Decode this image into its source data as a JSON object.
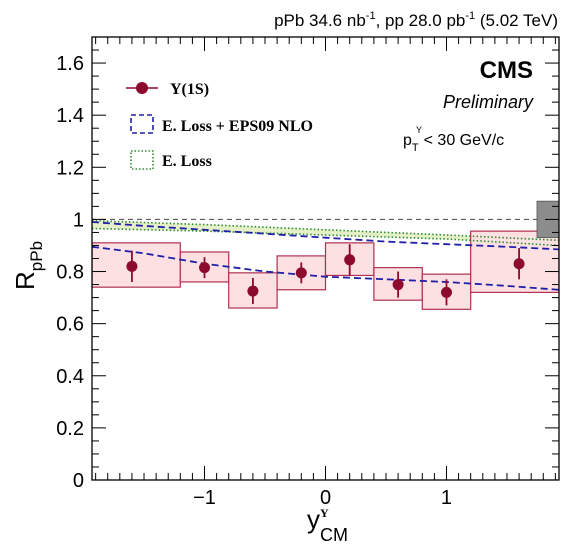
{
  "chart_data": {
    "type": "scatter",
    "header": {
      "collision_prefix": "pPb 34.6 nb",
      "collision_pp": ", pp 28.0 pb",
      "energy": " (5.02 TeV)",
      "sup": "-1"
    },
    "experiment": "CMS",
    "status": "Preliminary",
    "cut": {
      "p": "p",
      "sub": "T",
      "sup": "Y",
      "rest": "< 30 GeV/c"
    },
    "ylabel": {
      "main": "R",
      "sub": "pPb"
    },
    "xlabel": {
      "main": "y",
      "sub": "CM",
      "sup": "Y"
    },
    "xlim": [
      -1.93,
      1.93
    ],
    "ylim": [
      0,
      1.7
    ],
    "x_ticks": [
      {
        "value": -1,
        "label": "−1"
      },
      {
        "value": 0,
        "label": "0"
      },
      {
        "value": 1,
        "label": "1"
      }
    ],
    "y_ticks": [
      {
        "value": 0,
        "label": "0"
      },
      {
        "value": 0.2,
        "label": "0.2"
      },
      {
        "value": 0.4,
        "label": "0.4"
      },
      {
        "value": 0.6,
        "label": "0.6"
      },
      {
        "value": 0.8,
        "label": "0.8"
      },
      {
        "value": 1.0,
        "label": "1"
      },
      {
        "value": 1.2,
        "label": "1.2"
      },
      {
        "value": 1.4,
        "label": "1.4"
      },
      {
        "value": 1.6,
        "label": "1.6"
      }
    ],
    "reference_line": 1.0,
    "global_uncertainty": {
      "low": 0.93,
      "high": 1.07,
      "color": "#8c8c8c"
    },
    "series": [
      {
        "name": "Υ(1S)",
        "color": "#8b0a2e",
        "box_fill": "#fde0e2",
        "box_stroke": "#b03050",
        "points": [
          {
            "x": -1.6,
            "y": 0.82,
            "stat": 0.06,
            "xlo": -1.93,
            "xhi": -1.2,
            "syst_lo": 0.74,
            "syst_hi": 0.91
          },
          {
            "x": -1.0,
            "y": 0.815,
            "stat": 0.04,
            "xlo": -1.2,
            "xhi": -0.8,
            "syst_lo": 0.76,
            "syst_hi": 0.875
          },
          {
            "x": -0.6,
            "y": 0.725,
            "stat": 0.05,
            "xlo": -0.8,
            "xhi": -0.4,
            "syst_lo": 0.66,
            "syst_hi": 0.795
          },
          {
            "x": -0.2,
            "y": 0.795,
            "stat": 0.04,
            "xlo": -0.4,
            "xhi": 0.0,
            "syst_lo": 0.73,
            "syst_hi": 0.86
          },
          {
            "x": 0.2,
            "y": 0.845,
            "stat": 0.06,
            "xlo": 0.0,
            "xhi": 0.4,
            "syst_lo": 0.785,
            "syst_hi": 0.91
          },
          {
            "x": 0.6,
            "y": 0.75,
            "stat": 0.05,
            "xlo": 0.4,
            "xhi": 0.8,
            "syst_lo": 0.69,
            "syst_hi": 0.815
          },
          {
            "x": 1.0,
            "y": 0.72,
            "stat": 0.05,
            "xlo": 0.8,
            "xhi": 1.2,
            "syst_lo": 0.655,
            "syst_hi": 0.79
          },
          {
            "x": 1.6,
            "y": 0.83,
            "stat": 0.06,
            "xlo": 1.2,
            "xhi": 1.93,
            "syst_lo": 0.72,
            "syst_hi": 0.955
          }
        ]
      },
      {
        "name": "E. Loss + EPS09 NLO",
        "style": "dashed",
        "color": "#1f1fa8",
        "curves": [
          {
            "x": [
              -1.93,
              -1.5,
              -1.0,
              -0.5,
              0.0,
              0.5,
              1.0,
              1.5,
              1.93
            ],
            "y": [
              0.895,
              0.87,
              0.83,
              0.8,
              0.78,
              0.77,
              0.76,
              0.745,
              0.73
            ]
          },
          {
            "x": [
              -1.93,
              -1.5,
              -1.0,
              -0.5,
              0.0,
              0.5,
              1.0,
              1.5,
              1.93
            ],
            "y": [
              0.99,
              0.975,
              0.96,
              0.945,
              0.93,
              0.915,
              0.905,
              0.895,
              0.885
            ]
          }
        ]
      },
      {
        "name": "E. Loss",
        "style": "dotted",
        "color": "#2e8b2e",
        "band_fill": "#e6f0c8",
        "curves": [
          {
            "x": [
              -1.93,
              -1.0,
              0.0,
              1.0,
              1.93
            ],
            "y": [
              0.995,
              0.98,
              0.96,
              0.94,
              0.92
            ]
          },
          {
            "x": [
              -1.93,
              -1.0,
              0.0,
              1.0,
              1.93
            ],
            "y": [
              0.965,
              0.955,
              0.94,
              0.925,
              0.9
            ]
          }
        ]
      }
    ]
  }
}
